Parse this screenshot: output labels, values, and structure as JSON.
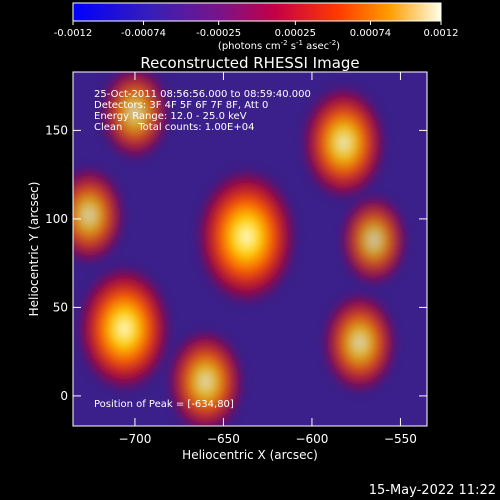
{
  "colorbar": {
    "ticks": [
      "-0.0012",
      "-0.00074",
      "-0.00025",
      "0.00025",
      "0.00074",
      "0.0012"
    ],
    "units_main": "(photons cm",
    "units_exp1": "-2",
    "units_mid": " s",
    "units_exp2": "-1",
    "units_tail": " asec",
    "units_exp3": "-2",
    "units_close": ")"
  },
  "timestamp": "15-May-2022 11:22",
  "chart_data": {
    "type": "heatmap",
    "title": "Reconstructed RHESSI Image",
    "xlabel": "Heliocentric X (arcsec)",
    "ylabel": "Heliocentric Y (arcsec)",
    "xlim": [
      -735,
      -535
    ],
    "ylim": [
      -17,
      183
    ],
    "x_ticks": [
      -700,
      -650,
      -600,
      -550
    ],
    "y_ticks": [
      0,
      50,
      100,
      150
    ],
    "colorscale_range": [
      -0.0012,
      0.0012
    ],
    "colors": {
      "cold": "#0000ff",
      "mid_low": "#4b1fa6",
      "mid": "#c4004a",
      "hot": "#ff6a00",
      "peak": "#ffffd0"
    },
    "annotations": [
      "25-Oct-2011 08:56:56.000 to 08:59:40.000",
      "Detectors: 3F 4F 5F 6F 7F 8F, Att 0",
      "Energy Range: 12.0 - 25.0 keV",
      "Clean     Total counts: 1.00E+04"
    ],
    "peak_label": "Position of Peak = [-634,80]",
    "peak_position": [
      -634,
      80
    ],
    "sources": [
      {
        "x": -637,
        "y": 90,
        "value": 0.0012
      },
      {
        "x": -706,
        "y": 38,
        "value": 0.00105
      },
      {
        "x": -582,
        "y": 143,
        "value": 0.00085
      },
      {
        "x": -660,
        "y": 8,
        "value": 0.0007
      },
      {
        "x": -573,
        "y": 30,
        "value": 0.00065
      },
      {
        "x": -726,
        "y": 102,
        "value": 0.0006
      },
      {
        "x": -700,
        "y": 160,
        "value": 0.00055
      },
      {
        "x": -565,
        "y": 88,
        "value": 0.0005
      }
    ]
  }
}
